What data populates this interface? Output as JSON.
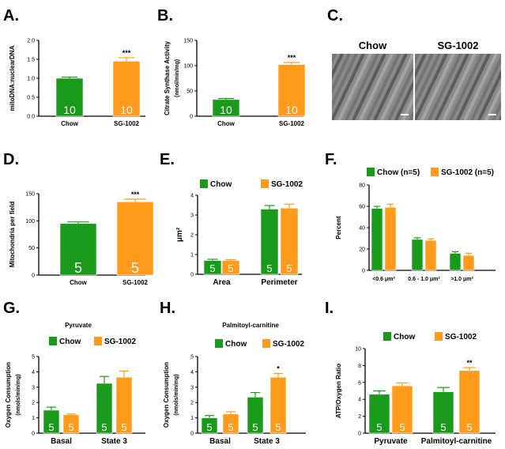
{
  "figure": {
    "colors": {
      "chow": "#1a9a1a",
      "sg": "#ff9a1a",
      "axis": "#000000",
      "em_bg": "#8a8a8a"
    }
  },
  "chart_data": [
    {
      "id": "A",
      "panel_label": "A.",
      "type": "bar",
      "ylabel": "mitoDNA:nuclearDNA",
      "ylim": [
        0,
        2.0
      ],
      "yticks": [
        "0.0",
        "0.5",
        "1.0",
        "1.5",
        "2.0"
      ],
      "categories": [
        "Chow",
        "SG-1002"
      ],
      "values": [
        1.0,
        1.45
      ],
      "errors": [
        0.03,
        0.09
      ],
      "bar_labels": [
        "10",
        "10"
      ],
      "significance": [
        "",
        "***"
      ]
    },
    {
      "id": "B",
      "panel_label": "B.",
      "type": "bar",
      "ylabel": "Citrate Synthase Activity",
      "ylabel2": "(nmol/min/mg)",
      "ylim": [
        0,
        150
      ],
      "yticks": [
        "0",
        "50",
        "100",
        "150"
      ],
      "categories": [
        "Chow",
        "SG-1002"
      ],
      "values": [
        33,
        102
      ],
      "errors": [
        2,
        4
      ],
      "bar_labels": [
        "10",
        "10"
      ],
      "significance": [
        "",
        "***"
      ]
    },
    {
      "id": "C",
      "panel_label": "C.",
      "type": "image",
      "image_labels": [
        "Chow",
        "SG-1002"
      ]
    },
    {
      "id": "D",
      "panel_label": "D.",
      "type": "bar",
      "ylabel": "Mitochondria per field",
      "ylim": [
        0,
        150
      ],
      "yticks": [
        "0",
        "50",
        "100",
        "150"
      ],
      "categories": [
        "Chow",
        "SG-1002"
      ],
      "values": [
        95,
        135
      ],
      "errors": [
        3,
        5
      ],
      "bar_labels": [
        "5",
        "5"
      ],
      "significance": [
        "",
        "***"
      ]
    },
    {
      "id": "E",
      "panel_label": "E.",
      "type": "bar",
      "ylabel": "μm²",
      "ylim": [
        0,
        4
      ],
      "yticks": [
        "0",
        "1",
        "2",
        "3",
        "4"
      ],
      "categories": [
        "Area",
        "Perimeter"
      ],
      "legend": [
        "Chow",
        "SG-1002"
      ],
      "series": [
        {
          "name": "Chow",
          "values": [
            0.7,
            3.3
          ],
          "errors": [
            0.06,
            0.18
          ]
        },
        {
          "name": "SG-1002",
          "values": [
            0.7,
            3.35
          ],
          "errors": [
            0.04,
            0.2
          ]
        }
      ],
      "bar_labels": [
        "5",
        "5",
        "5",
        "5"
      ],
      "significance": [
        "",
        "",
        "",
        ""
      ]
    },
    {
      "id": "F",
      "panel_label": "F.",
      "type": "bar",
      "ylabel": "Percent",
      "ylim": [
        0,
        80
      ],
      "yticks": [
        "0",
        "20",
        "40",
        "60",
        "80"
      ],
      "categories": [
        "<0.6 μm²",
        "0.6 - 1.0 μm²",
        ">1.0 μm²"
      ],
      "legend": [
        "Chow (n=5)",
        "SG-1002 (n=5)"
      ],
      "series": [
        {
          "name": "Chow (n=5)",
          "values": [
            58,
            29,
            16
          ],
          "errors": [
            2,
            1.5,
            1.5
          ]
        },
        {
          "name": "SG-1002 (n=5)",
          "values": [
            59,
            28,
            14
          ],
          "errors": [
            3,
            1.5,
            2
          ]
        }
      ],
      "bar_labels": [
        "",
        "",
        "",
        "",
        "",
        ""
      ],
      "significance": [
        "",
        "",
        "",
        "",
        "",
        ""
      ]
    },
    {
      "id": "G",
      "panel_label": "G.",
      "type": "bar",
      "title": "Pyruvate",
      "ylabel": "Oxygen Consumption",
      "ylabel2": "(nmols/min/mg)",
      "ylim": [
        0,
        5
      ],
      "yticks": [
        "0",
        "1",
        "2",
        "3",
        "4",
        "5"
      ],
      "categories": [
        "Basal",
        "State 3"
      ],
      "legend": [
        "Chow",
        "SG-1002"
      ],
      "series": [
        {
          "name": "Chow",
          "values": [
            1.5,
            3.25
          ],
          "errors": [
            0.2,
            0.45
          ]
        },
        {
          "name": "SG-1002",
          "values": [
            1.2,
            3.65
          ],
          "errors": [
            0.05,
            0.4
          ]
        }
      ],
      "bar_labels": [
        "5",
        "5",
        "5",
        "5"
      ],
      "significance": [
        "",
        "",
        "",
        ""
      ]
    },
    {
      "id": "H",
      "panel_label": "H.",
      "type": "bar",
      "title": "Palmitoyl-carnitine",
      "ylabel": "Oxygen Consumption",
      "ylabel2": "(nmols/min/mg)",
      "ylim": [
        0,
        5
      ],
      "yticks": [
        "0",
        "1",
        "2",
        "3",
        "4",
        "5"
      ],
      "categories": [
        "Basal",
        "State 3"
      ],
      "legend": [
        "Chow",
        "SG-1002"
      ],
      "series": [
        {
          "name": "Chow",
          "values": [
            1.0,
            2.35
          ],
          "errors": [
            0.15,
            0.3
          ]
        },
        {
          "name": "SG-1002",
          "values": [
            1.25,
            3.65
          ],
          "errors": [
            0.15,
            0.25
          ]
        }
      ],
      "bar_labels": [
        "5",
        "5",
        "5",
        "5"
      ],
      "significance": [
        "",
        "",
        "",
        "*"
      ]
    },
    {
      "id": "I",
      "panel_label": "I.",
      "type": "bar",
      "ylabel": "ATP/Oxygen Ratio",
      "ylim": [
        0,
        10
      ],
      "yticks": [
        "0",
        "2",
        "4",
        "6",
        "8",
        "10"
      ],
      "categories": [
        "Pyruvate",
        "Palmitoyl-carnitine"
      ],
      "legend": [
        "Chow",
        "SG-1002"
      ],
      "series": [
        {
          "name": "Chow",
          "values": [
            4.6,
            4.9
          ],
          "errors": [
            0.4,
            0.5
          ]
        },
        {
          "name": "SG-1002",
          "values": [
            5.6,
            7.4
          ],
          "errors": [
            0.35,
            0.35
          ]
        }
      ],
      "bar_labels": [
        "5",
        "5",
        "5",
        "5"
      ],
      "significance": [
        "",
        "",
        "",
        "**"
      ]
    }
  ]
}
